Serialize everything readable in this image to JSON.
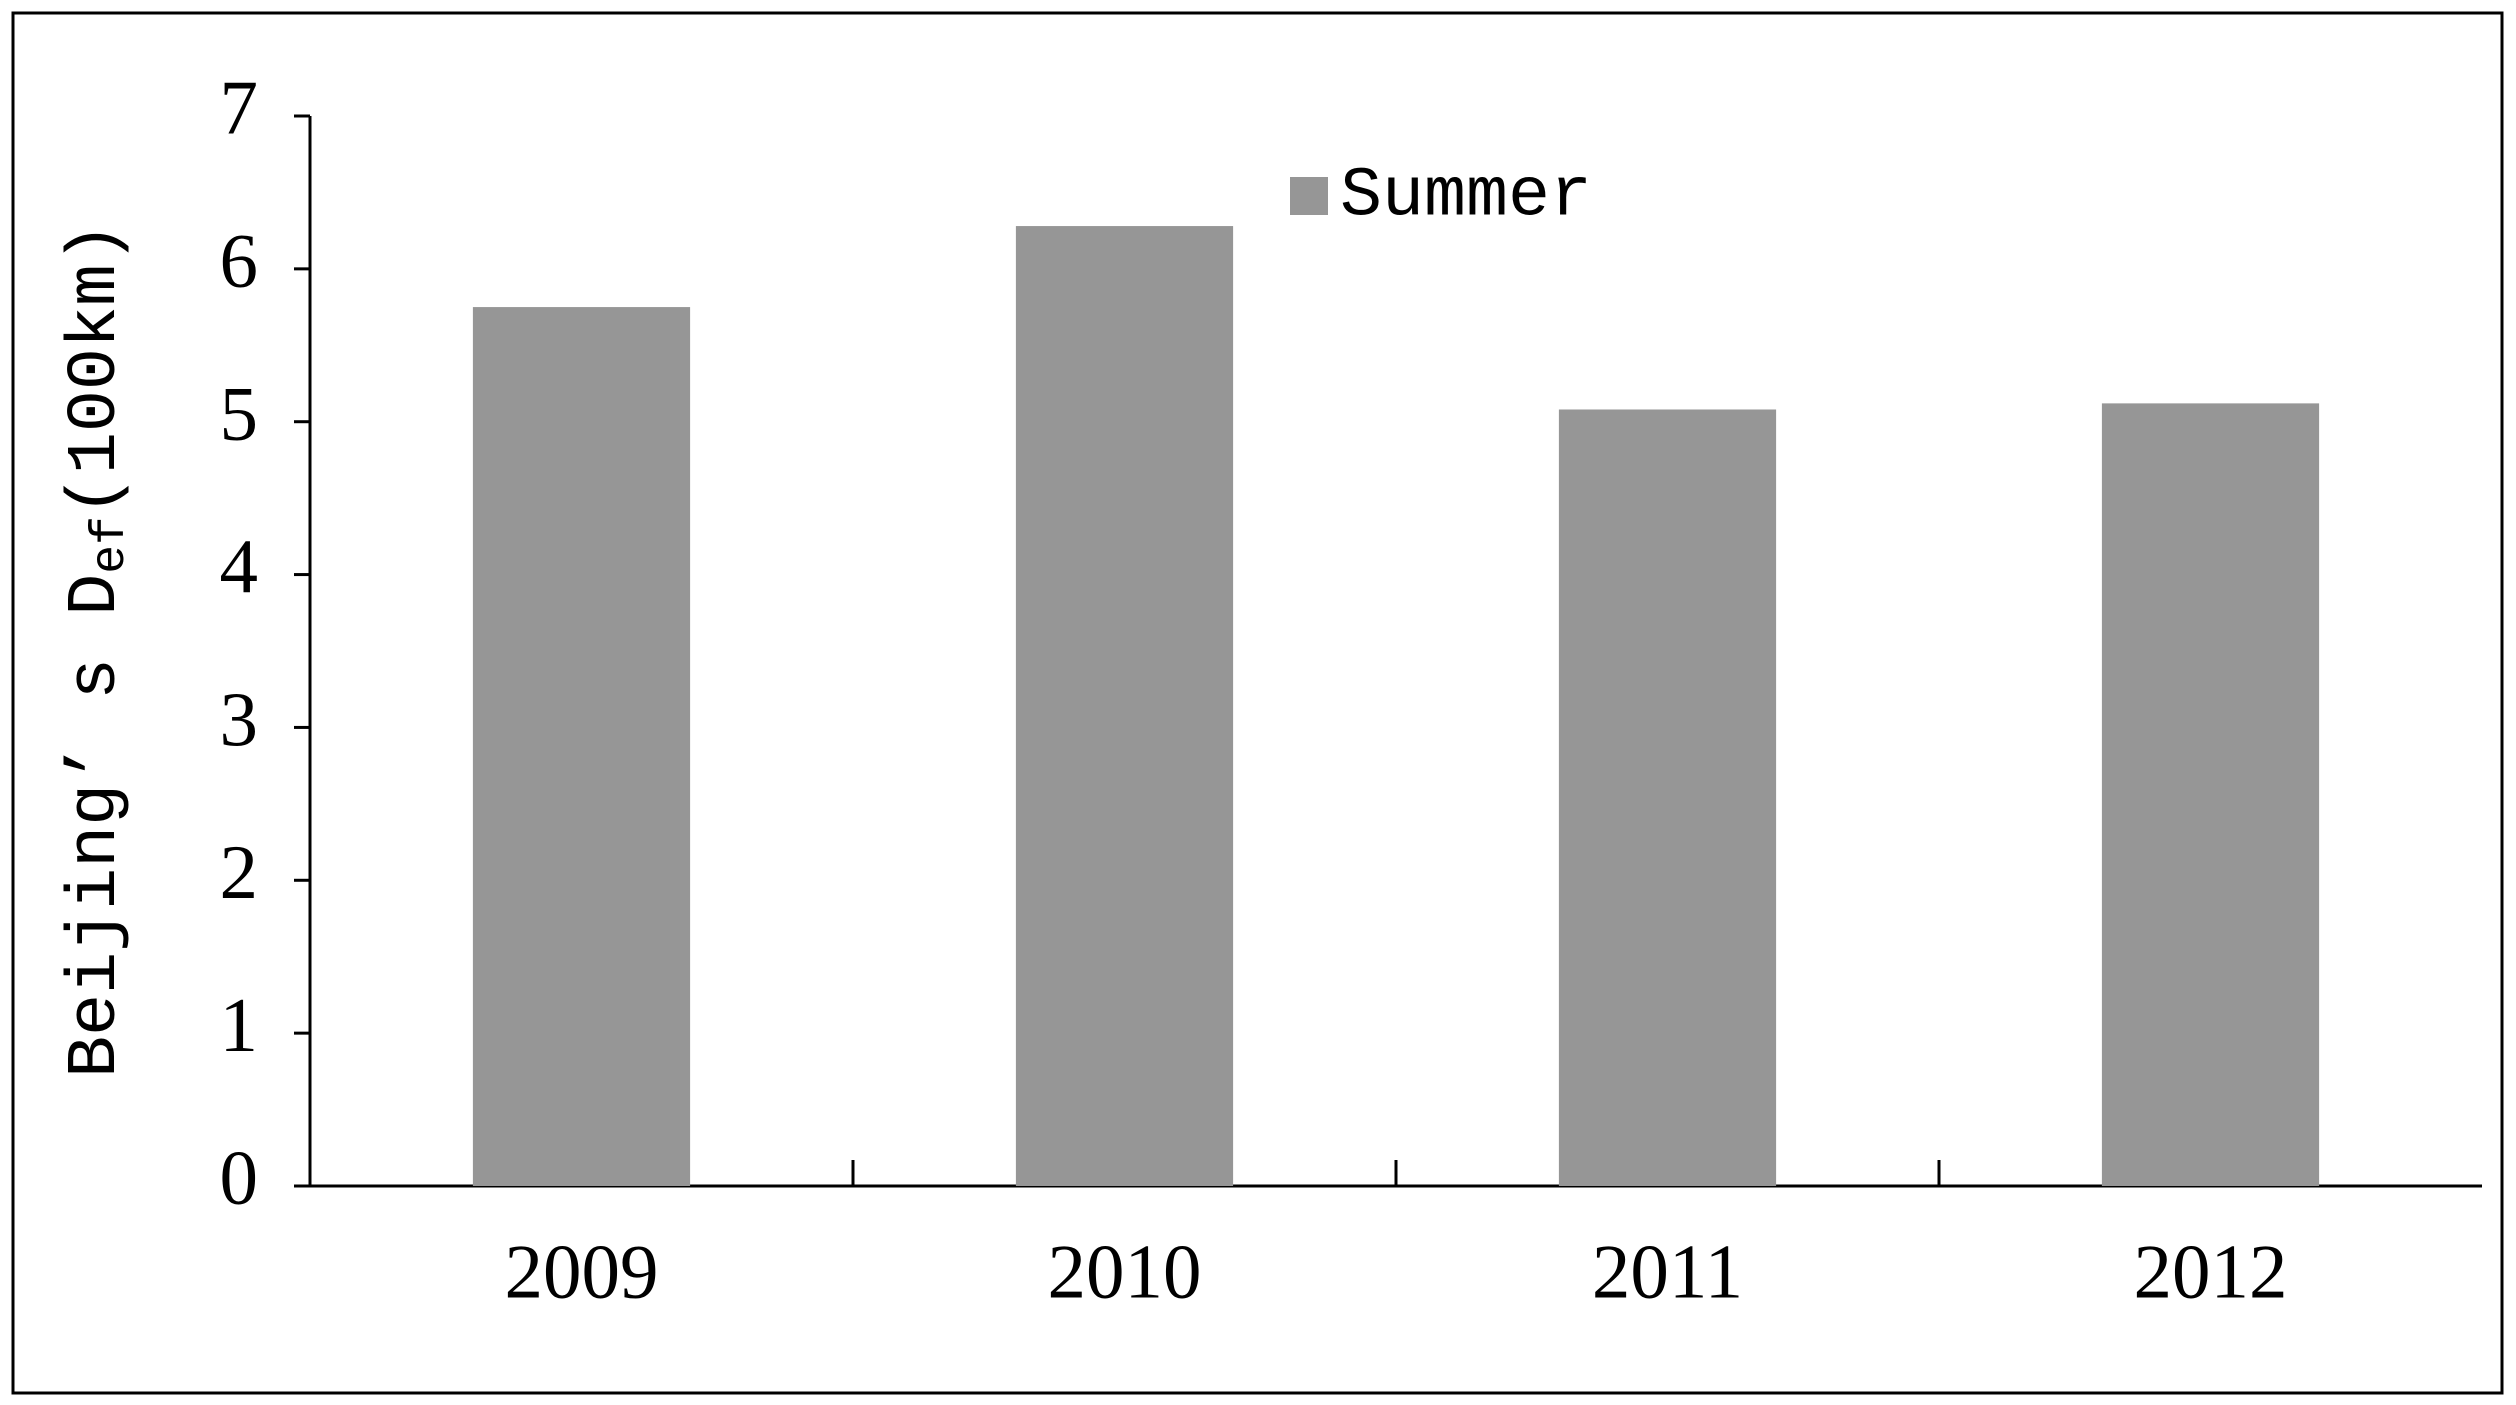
{
  "chart_data": {
    "type": "bar",
    "y_label": {
      "text": "Beijing’ s D",
      "subscript": "ef",
      "suffix": "(100km)"
    },
    "categories": [
      "2009",
      "2010",
      "2011",
      "2012"
    ],
    "series": [
      {
        "name": "Summer",
        "color": "#969696",
        "values": [
          5.75,
          6.28,
          5.08,
          5.12
        ]
      }
    ],
    "ylim": [
      0,
      7
    ],
    "yticks": [
      0,
      1,
      2,
      3,
      4,
      5,
      6,
      7
    ],
    "grid": false
  }
}
